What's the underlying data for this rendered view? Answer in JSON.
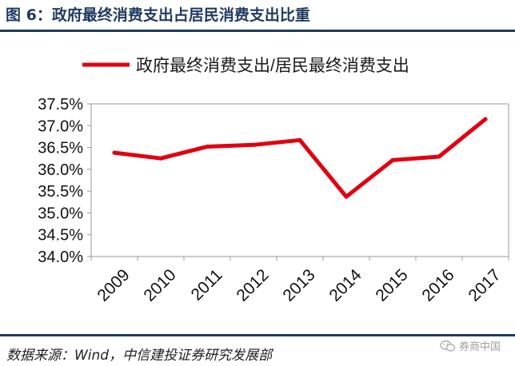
{
  "header": {
    "title": "图 6：政府最终消费支出占居民消费支出比重"
  },
  "footer": {
    "source": "数据来源：Wind，中信建投证券研究发展部"
  },
  "watermark": {
    "text": "券商中国",
    "icon": "wechat-icon"
  },
  "colors": {
    "series": "#e3000f",
    "header": "#1f3a5f"
  },
  "chart_data": {
    "type": "line",
    "title": "",
    "xlabel": "",
    "ylabel": "",
    "categories": [
      "2009",
      "2010",
      "2011",
      "2012",
      "2013",
      "2014",
      "2015",
      "2016",
      "2017"
    ],
    "series": [
      {
        "name": "政府最终消费支出/居民最终消费支出",
        "values": [
          36.38,
          36.25,
          36.52,
          36.56,
          36.67,
          35.37,
          36.21,
          36.29,
          37.15
        ]
      }
    ],
    "ylim": [
      34.0,
      37.5
    ],
    "yticks": [
      "34.0%",
      "34.5%",
      "35.0%",
      "35.5%",
      "36.0%",
      "36.5%",
      "37.0%",
      "37.5%"
    ],
    "legend": "top",
    "grid": false
  }
}
